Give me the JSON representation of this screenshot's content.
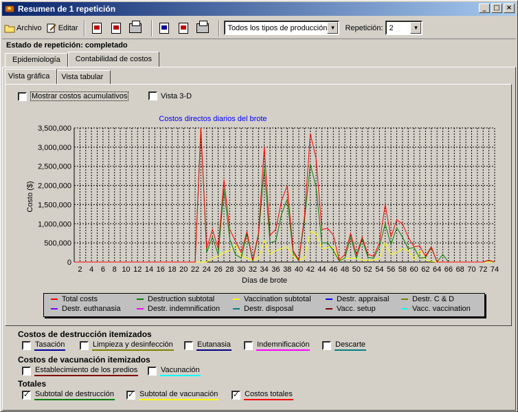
{
  "window": {
    "title": "Resumen de 1 repetición"
  },
  "toolbar": {
    "archivo_label": "Archivo",
    "editar_label": "Editar",
    "production_type": "Todos los tipos de producción",
    "repetition_label": "Repetición:",
    "repetition_value": "2"
  },
  "status": "Estado de repetición: completado",
  "tabs": [
    "Epidemiología",
    "Contabilidad de costos"
  ],
  "subtabs": [
    "Vista gráfica",
    "Vista tabular"
  ],
  "options": {
    "cumulative": "Mostrar costos acumulativos",
    "view3d": "Vista 3-D"
  },
  "itemized_destruction": {
    "header": "Costos de destrucción itemizados",
    "items": [
      {
        "label": "Tasación",
        "checked": false,
        "color": "#0000a0"
      },
      {
        "label": "Limpieza y desinfección",
        "checked": false,
        "color": "#808000"
      },
      {
        "label": "Eutanasia",
        "checked": false,
        "color": "#000080"
      },
      {
        "label": "Indemnificación",
        "checked": false,
        "color": "#ff00ff"
      },
      {
        "label": "Descarte",
        "checked": false,
        "color": "#008080"
      }
    ]
  },
  "itemized_vaccination": {
    "header": "Costos de vacunación itemizados",
    "items": [
      {
        "label": "Establecimiento de los predios",
        "checked": false,
        "color": "#800000"
      },
      {
        "label": "Vacunación",
        "checked": false,
        "color": "#00ffff"
      }
    ]
  },
  "totals": {
    "header": "Totales",
    "items": [
      {
        "label": "Subtotal de destrucción",
        "checked": true,
        "color": "#008000"
      },
      {
        "label": "Subtotal de vacunación",
        "checked": true,
        "color": "#ffff00"
      },
      {
        "label": "Costos totales",
        "checked": true,
        "color": "#ff0000"
      }
    ]
  },
  "chart_data": {
    "type": "line",
    "title": "Costos directos diarios del brote",
    "xlabel": "Días de brote",
    "ylabel": "Costo ($)",
    "ylim": [
      0,
      3500000
    ],
    "xlim": [
      1,
      74
    ],
    "yticks": [
      "0",
      "500,000",
      "1,000,000",
      "1,500,000",
      "2,000,000",
      "2,500,000",
      "3,000,000",
      "3,500,000"
    ],
    "xticks": [
      "2",
      "4",
      "6",
      "8",
      "10",
      "12",
      "14",
      "16",
      "18",
      "20",
      "22",
      "24",
      "26",
      "28",
      "30",
      "32",
      "34",
      "36",
      "38",
      "40",
      "42",
      "44",
      "46",
      "48",
      "50",
      "52",
      "54",
      "56",
      "58",
      "60",
      "62",
      "64",
      "66",
      "68",
      "70",
      "72",
      "74"
    ],
    "grid": true,
    "legend": [
      {
        "name": "Total costs",
        "color": "#ff0000"
      },
      {
        "name": "Destruction subtotal",
        "color": "#008000"
      },
      {
        "name": "Vaccination subtotal",
        "color": "#ffff00"
      },
      {
        "name": "Destr. appraisal",
        "color": "#0000ff"
      },
      {
        "name": "Destr. C & D",
        "color": "#808000"
      },
      {
        "name": "Destr. euthanasia",
        "color": "#8000ff"
      },
      {
        "name": "Destr. indemnification",
        "color": "#ff00ff"
      },
      {
        "name": "Destr. disposal",
        "color": "#008080"
      },
      {
        "name": "Vacc. setup",
        "color": "#800000"
      },
      {
        "name": "Vacc. vaccination",
        "color": "#00ffff"
      }
    ],
    "series": [
      {
        "name": "Total costs",
        "color": "#ff0000",
        "points": [
          [
            1,
            0
          ],
          [
            22,
            0
          ],
          [
            23,
            3500000
          ],
          [
            24,
            350000
          ],
          [
            25,
            850000
          ],
          [
            26,
            350000
          ],
          [
            27,
            2150000
          ],
          [
            28,
            850000
          ],
          [
            29,
            550000
          ],
          [
            30,
            250000
          ],
          [
            31,
            800000
          ],
          [
            32,
            50000
          ],
          [
            33,
            750000
          ],
          [
            34,
            3000000
          ],
          [
            35,
            700000
          ],
          [
            36,
            850000
          ],
          [
            37,
            1600000
          ],
          [
            38,
            2000000
          ],
          [
            39,
            300000
          ],
          [
            40,
            50000
          ],
          [
            41,
            1200000
          ],
          [
            42,
            3350000
          ],
          [
            43,
            2700000
          ],
          [
            44,
            850000
          ],
          [
            45,
            880000
          ],
          [
            46,
            700000
          ],
          [
            47,
            50000
          ],
          [
            48,
            200000
          ],
          [
            49,
            750000
          ],
          [
            50,
            200000
          ],
          [
            51,
            650000
          ],
          [
            52,
            200000
          ],
          [
            53,
            150000
          ],
          [
            54,
            500000
          ],
          [
            55,
            1500000
          ],
          [
            56,
            650000
          ],
          [
            57,
            1100000
          ],
          [
            58,
            1000000
          ],
          [
            59,
            650000
          ],
          [
            60,
            400000
          ],
          [
            61,
            420000
          ],
          [
            62,
            150000
          ],
          [
            63,
            400000
          ],
          [
            64,
            0
          ],
          [
            65,
            0
          ],
          [
            72,
            0
          ],
          [
            73,
            50000
          ],
          [
            74,
            0
          ]
        ]
      },
      {
        "name": "Destruction subtotal",
        "color": "#008000",
        "points": [
          [
            1,
            0
          ],
          [
            22,
            0
          ],
          [
            23,
            3500000
          ],
          [
            24,
            250000
          ],
          [
            25,
            650000
          ],
          [
            26,
            200000
          ],
          [
            27,
            1900000
          ],
          [
            28,
            600000
          ],
          [
            29,
            200000
          ],
          [
            30,
            100000
          ],
          [
            31,
            750000
          ],
          [
            32,
            20000
          ],
          [
            33,
            700000
          ],
          [
            34,
            2450000
          ],
          [
            35,
            500000
          ],
          [
            36,
            550000
          ],
          [
            37,
            1250000
          ],
          [
            38,
            1650000
          ],
          [
            39,
            250000
          ],
          [
            40,
            30000
          ],
          [
            41,
            1100000
          ],
          [
            42,
            2550000
          ],
          [
            43,
            1950000
          ],
          [
            44,
            500000
          ],
          [
            45,
            500000
          ],
          [
            46,
            300000
          ],
          [
            47,
            30000
          ],
          [
            48,
            100000
          ],
          [
            49,
            650000
          ],
          [
            50,
            100000
          ],
          [
            51,
            600000
          ],
          [
            52,
            120000
          ],
          [
            53,
            100000
          ],
          [
            54,
            400000
          ],
          [
            55,
            1000000
          ],
          [
            56,
            450000
          ],
          [
            57,
            900000
          ],
          [
            58,
            650000
          ],
          [
            59,
            350000
          ],
          [
            60,
            380000
          ],
          [
            61,
            100000
          ],
          [
            62,
            120000
          ],
          [
            63,
            380000
          ],
          [
            64,
            0
          ],
          [
            65,
            200000
          ],
          [
            66,
            0
          ],
          [
            72,
            0
          ],
          [
            73,
            40000
          ],
          [
            74,
            0
          ]
        ]
      },
      {
        "name": "Vaccination subtotal",
        "color": "#ffff00",
        "points": [
          [
            1,
            0
          ],
          [
            24,
            0
          ],
          [
            25,
            100000
          ],
          [
            26,
            150000
          ],
          [
            27,
            250000
          ],
          [
            28,
            300000
          ],
          [
            29,
            450000
          ],
          [
            30,
            150000
          ],
          [
            31,
            100000
          ],
          [
            32,
            50000
          ],
          [
            33,
            100000
          ],
          [
            34,
            550000
          ],
          [
            35,
            200000
          ],
          [
            36,
            300000
          ],
          [
            37,
            350000
          ],
          [
            38,
            400000
          ],
          [
            39,
            150000
          ],
          [
            40,
            50000
          ],
          [
            41,
            100000
          ],
          [
            42,
            800000
          ],
          [
            43,
            750000
          ],
          [
            44,
            350000
          ],
          [
            45,
            380000
          ],
          [
            46,
            400000
          ],
          [
            47,
            50000
          ],
          [
            48,
            100000
          ],
          [
            49,
            100000
          ],
          [
            50,
            100000
          ],
          [
            51,
            50000
          ],
          [
            52,
            50000
          ],
          [
            53,
            50000
          ],
          [
            54,
            100000
          ],
          [
            55,
            500000
          ],
          [
            56,
            200000
          ],
          [
            57,
            250000
          ],
          [
            58,
            350000
          ],
          [
            59,
            300000
          ],
          [
            60,
            50000
          ],
          [
            61,
            300000
          ],
          [
            62,
            50000
          ],
          [
            63,
            20000
          ],
          [
            64,
            0
          ],
          [
            74,
            0
          ]
        ]
      }
    ]
  }
}
